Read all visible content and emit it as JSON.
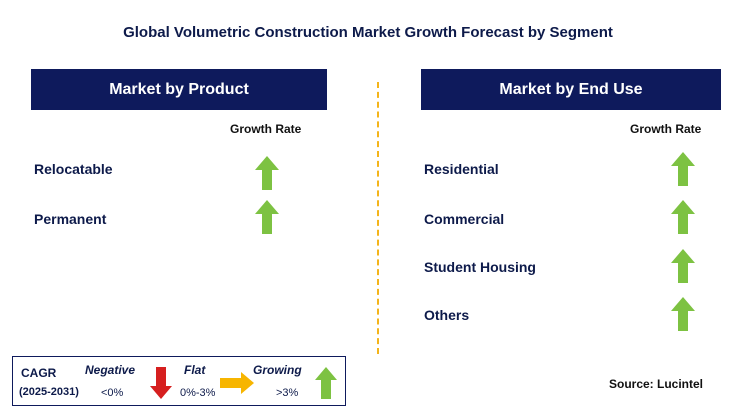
{
  "title": "Global Volumetric Construction Market Growth Forecast by Segment",
  "product": {
    "header": "Market by Product",
    "growth_label": "Growth Rate",
    "items": [
      {
        "label": "Relocatable",
        "trend": "growing"
      },
      {
        "label": "Permanent",
        "trend": "growing"
      }
    ]
  },
  "end_use": {
    "header": "Market by End Use",
    "growth_label": "Growth Rate",
    "items": [
      {
        "label": "Residential",
        "trend": "growing"
      },
      {
        "label": "Commercial",
        "trend": "growing"
      },
      {
        "label": "Student Housing",
        "trend": "growing"
      },
      {
        "label": "Others",
        "trend": "growing"
      }
    ]
  },
  "legend": {
    "cagr": "CAGR",
    "period": "(2025-2031)",
    "negative_label": "Negative",
    "negative_range": "<0%",
    "flat_label": "Flat",
    "flat_range": "0%-3%",
    "growing_label": "Growing",
    "growing_range": ">3%"
  },
  "source": "Source: Lucintel",
  "colors": {
    "header_bg": "#0e1a5c",
    "growing_arrow": "#7dc242",
    "negative_arrow": "#d61f1f",
    "flat_arrow": "#f7b500",
    "divider": "#f4b41a"
  }
}
